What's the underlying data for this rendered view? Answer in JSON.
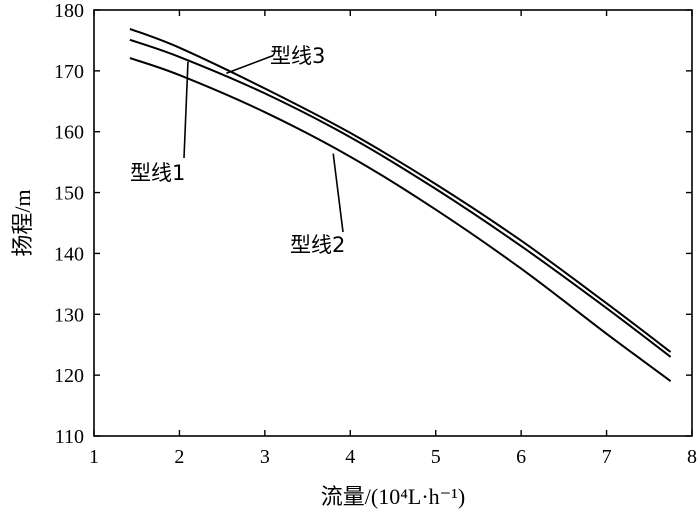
{
  "chart_data": {
    "type": "line",
    "title": "",
    "xlabel": "流量/(10⁴L·h⁻¹)",
    "ylabel": "扬程/m",
    "xlim": [
      1,
      8
    ],
    "ylim": [
      110,
      180
    ],
    "xticks": [
      1,
      2,
      3,
      4,
      5,
      6,
      7,
      8
    ],
    "yticks": [
      110,
      120,
      130,
      140,
      150,
      160,
      170,
      180
    ],
    "grid": false,
    "series": [
      {
        "name": "型线1",
        "x": [
          1.42,
          2,
          3,
          4,
          5,
          6,
          7,
          7.75
        ],
        "y": [
          175.1,
          172.3,
          166.3,
          159.1,
          150.6,
          141.2,
          131.0,
          123.0
        ]
      },
      {
        "name": "型线2",
        "x": [
          1.42,
          2,
          3,
          4,
          5,
          6,
          7,
          7.75
        ],
        "y": [
          172.1,
          169.3,
          163.2,
          155.9,
          147.2,
          137.5,
          126.8,
          119.0
        ]
      },
      {
        "name": "型线3",
        "x": [
          1.42,
          2,
          3,
          4,
          5,
          6,
          7,
          7.75
        ],
        "y": [
          176.9,
          173.8,
          167.1,
          159.8,
          151.4,
          142.1,
          131.8,
          123.8
        ]
      }
    ],
    "annotations": [
      {
        "text": "型线3",
        "series": "型线3",
        "x": 2.55,
        "y": 169.6
      },
      {
        "text": "型线1",
        "series": "型线1",
        "x": 2.1,
        "y": 171.5
      },
      {
        "text": "型线2",
        "series": "型线2",
        "x": 3.8,
        "y": 156.4
      }
    ]
  }
}
